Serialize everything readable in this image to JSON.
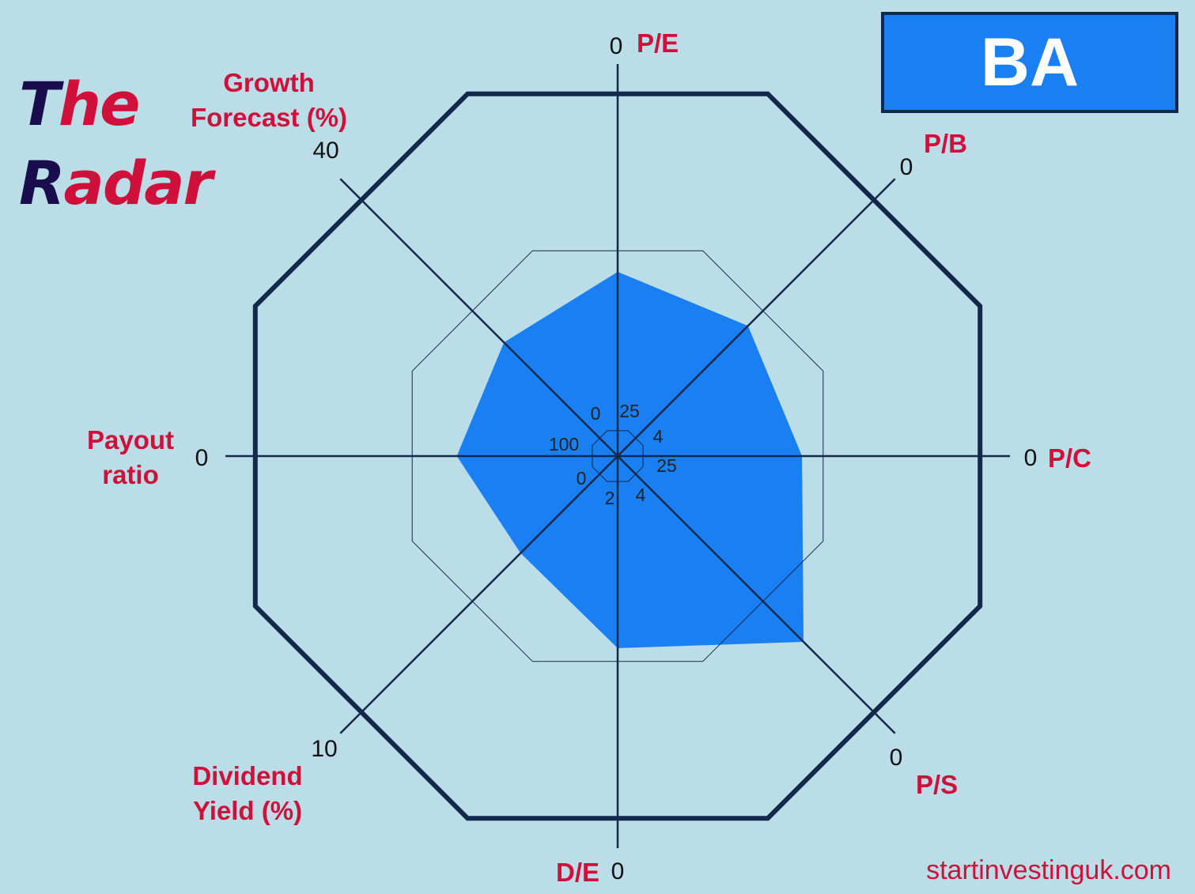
{
  "header": {
    "title_line1_cap": "T",
    "title_line1_rest": "he",
    "title_line2_cap": "R",
    "title_line2_rest": "adar",
    "ticker": "BA"
  },
  "footer": {
    "website": "startinvestinguk.com"
  },
  "colors": {
    "background": "#bbdde8",
    "frame": "#13294b",
    "fill": "#1a7ff2",
    "label": "#d0103a",
    "title_dark": "#1a0d4d"
  },
  "chart_data": {
    "type": "radar",
    "series_fill_ratio": [
      0.47,
      0.47,
      0.47,
      0.67,
      0.49,
      0.35,
      0.41,
      0.41
    ],
    "axes": [
      {
        "name": "P/E",
        "label_lines": [
          "P/E"
        ],
        "outer_tick": "0",
        "inner_tick": "25"
      },
      {
        "name": "P/B",
        "label_lines": [
          "P/B"
        ],
        "outer_tick": "0",
        "inner_tick": "4"
      },
      {
        "name": "P/C",
        "label_lines": [
          "P/C"
        ],
        "outer_tick": "0",
        "inner_tick": "25"
      },
      {
        "name": "P/S",
        "label_lines": [
          "P/S"
        ],
        "outer_tick": "0",
        "inner_tick": "4"
      },
      {
        "name": "D/E",
        "label_lines": [
          "D/E"
        ],
        "outer_tick": "0",
        "inner_tick": "2"
      },
      {
        "name": "Dividend Yield (%)",
        "label_lines": [
          "Dividend",
          "Yield (%)"
        ],
        "outer_tick": "10",
        "inner_tick": "0"
      },
      {
        "name": "Payout ratio",
        "label_lines": [
          "Payout",
          "ratio"
        ],
        "outer_tick": "0",
        "inner_tick": "100"
      },
      {
        "name": "Growth Forecast (%)",
        "label_lines": [
          "Growth",
          "Forecast (%)"
        ],
        "outer_tick": "40",
        "inner_tick": "0"
      }
    ]
  }
}
